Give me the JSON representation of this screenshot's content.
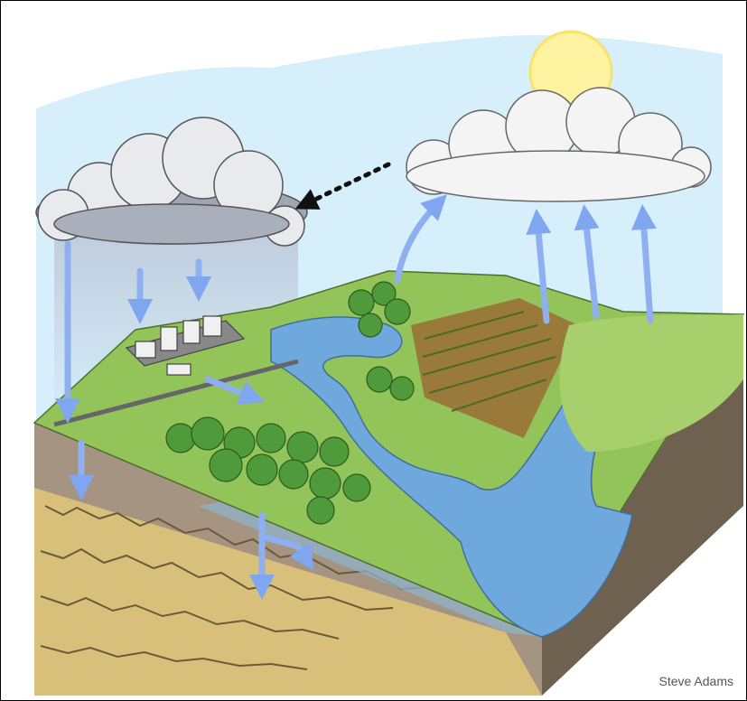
{
  "credit": "Steve Adams"
}
